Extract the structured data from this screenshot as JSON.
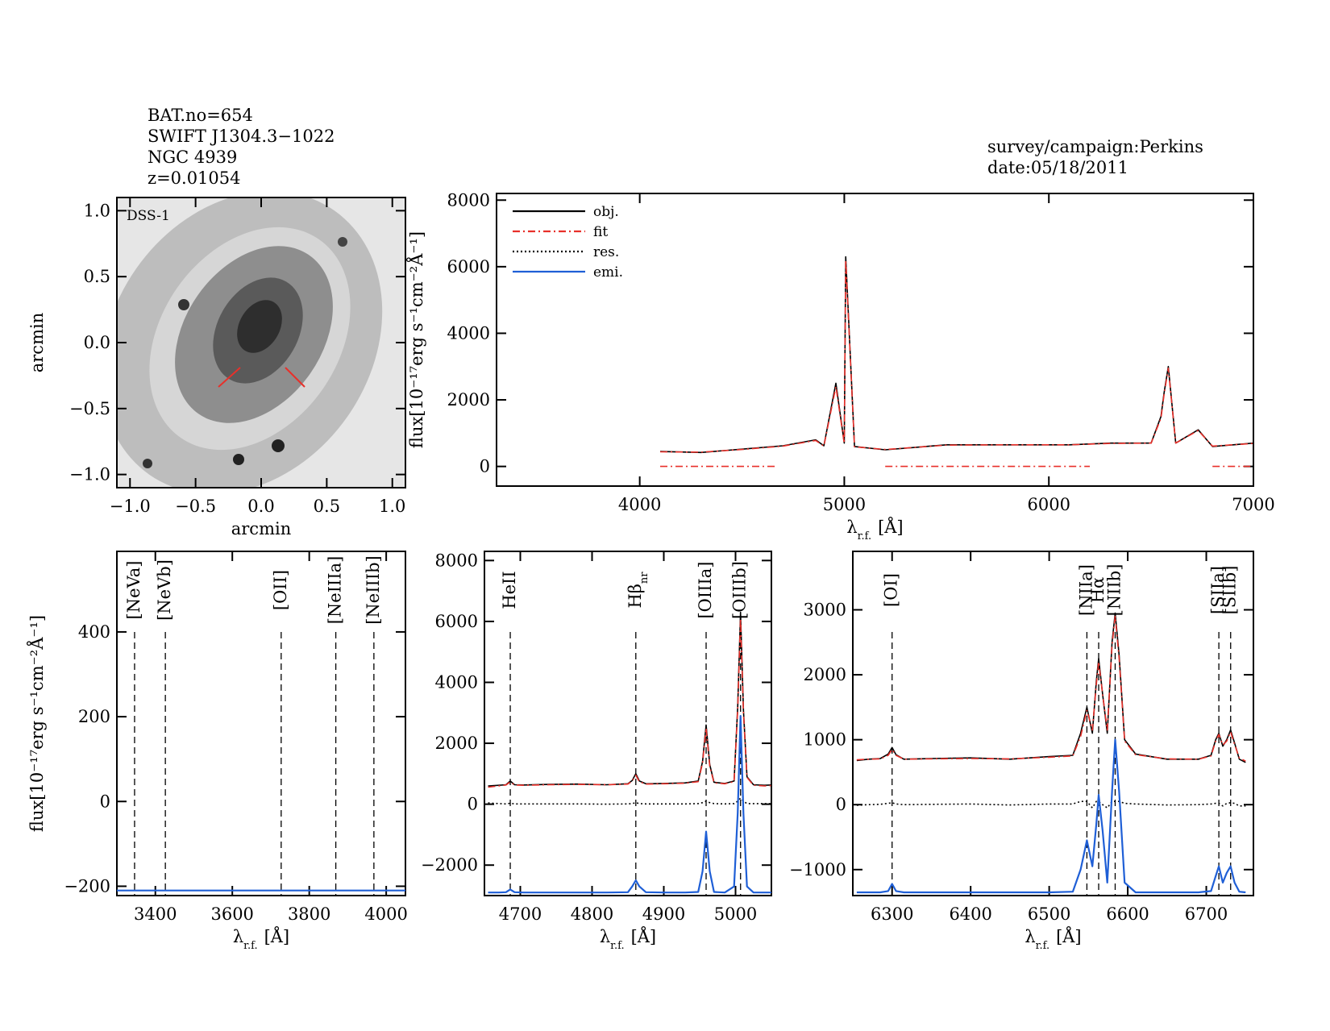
{
  "header": {
    "lines": [
      "BAT.no=654",
      "SWIFT J1304.3−1022",
      "NGC 4939",
      "z=0.01054"
    ],
    "right": [
      "survey/campaign:Perkins",
      "date:05/18/2011"
    ]
  },
  "chart_data": [
    {
      "type": "image",
      "title": "DSS-1",
      "xlabel": "arcmin",
      "ylabel": "arcmin",
      "xlim": [
        -1.1,
        1.1
      ],
      "ylim": [
        -1.1,
        1.1
      ],
      "xticks": [
        {
          "value": -1,
          "label": "−1.0"
        },
        {
          "value": -0.5,
          "label": "−0.5"
        },
        {
          "value": 0,
          "label": "0.0"
        },
        {
          "value": 0.5,
          "label": "0.5"
        },
        {
          "value": 1,
          "label": "1.0"
        }
      ],
      "yticks": [
        {
          "value": -1,
          "label": "−1.0"
        },
        {
          "value": -0.5,
          "label": "−0.5"
        },
        {
          "value": 0,
          "label": "0.0"
        },
        {
          "value": 0.5,
          "label": "0.5"
        },
        {
          "value": 1,
          "label": "1.0"
        }
      ]
    },
    {
      "type": "line",
      "ylabel": "flux[10⁻¹⁷erg s⁻¹cm⁻²Å⁻¹]",
      "xlabel": {
        "main": "λ",
        "sub": "r.f.",
        "unit": "[Å]"
      },
      "xlim": [
        3300,
        7000
      ],
      "ylim": [
        -590,
        8200
      ],
      "xticks": [
        4000,
        5000,
        6000,
        7000
      ],
      "yticks": [
        0,
        2000,
        4000,
        6000,
        8000
      ],
      "legend": [
        {
          "label": "obj.",
          "color": "#000000",
          "dash": "solid"
        },
        {
          "label": "fit",
          "color": "#e8302a",
          "dash": "dashdot"
        },
        {
          "label": "res.",
          "color": "#000000",
          "dash": "dotted"
        },
        {
          "label": "emi.",
          "color": "#1f5fd6",
          "dash": "solid"
        }
      ],
      "series": [
        {
          "color": "#000000",
          "dash": "solid",
          "x": [
            4100,
            4300,
            4500,
            4700,
            4860,
            4900,
            4959,
            5000,
            5007,
            5050,
            5200,
            5500,
            5800,
            6100,
            6300,
            6500,
            6548,
            6563,
            6584,
            6620,
            6730,
            6800,
            7000
          ],
          "values": [
            450,
            420,
            520,
            620,
            800,
            620,
            2500,
            700,
            6300,
            600,
            500,
            650,
            650,
            650,
            700,
            700,
            1500,
            2200,
            3000,
            700,
            1100,
            600,
            700
          ]
        },
        {
          "color": "#e8302a",
          "dash": "dashdot",
          "x": [
            4100,
            4300,
            4500,
            4700,
            4860,
            4900,
            4959,
            5000,
            5007,
            5050,
            5200,
            5500,
            5800,
            6100,
            6300,
            6500,
            6548,
            6563,
            6584,
            6620,
            6730,
            6800,
            7000
          ],
          "values": [
            440,
            430,
            510,
            610,
            780,
            610,
            2400,
            690,
            6200,
            590,
            510,
            640,
            650,
            650,
            690,
            700,
            1450,
            2150,
            2950,
            700,
            1080,
            610,
            690
          ]
        },
        {
          "color": "#e8302a",
          "dash": "dashdot",
          "x": [
            4100,
            4660,
            4665,
            5200,
            6200,
            6205,
            6800,
            7000
          ],
          "values": [
            0,
            0,
            null,
            0,
            0,
            null,
            0,
            0
          ]
        }
      ]
    },
    {
      "type": "line",
      "ylabel": "flux[10⁻¹⁷erg s⁻¹cm⁻²Å⁻¹]",
      "xlabel": {
        "main": "λ",
        "sub": "r.f.",
        "unit": "[Å]"
      },
      "xlim": [
        3300,
        4050
      ],
      "ylim": [
        -222,
        590
      ],
      "xticks": [
        3400,
        3600,
        3800,
        4000
      ],
      "yticks": [
        {
          "value": -200,
          "label": "−200"
        },
        0,
        200,
        400
      ],
      "line_color": "#e8302a",
      "lines": [
        {
          "x": 3346,
          "label": "[NeVa]"
        },
        {
          "x": 3426,
          "label": "[NeVb]"
        },
        {
          "x": 3727,
          "label": "[OII]"
        },
        {
          "x": 3869,
          "label": "[NeIIIa]"
        },
        {
          "x": 3968,
          "label": "[NeIIIb]"
        }
      ],
      "series": [
        {
          "color": "#1f5fd6",
          "dash": "solid",
          "x": [
            3300,
            4050
          ],
          "values": [
            -210,
            -210
          ]
        }
      ]
    },
    {
      "type": "line",
      "xlabel": {
        "main": "λ",
        "sub": "r.f.",
        "unit": "[Å]"
      },
      "xlim": [
        4650,
        5050
      ],
      "ylim": [
        -3000,
        8300
      ],
      "xticks": [
        4700,
        4800,
        4900,
        5000
      ],
      "yticks": [
        {
          "value": -2000,
          "label": "−2000"
        },
        0,
        2000,
        4000,
        6000,
        8000
      ],
      "line_color": "#000000",
      "lines": [
        {
          "x": 4686,
          "label": "HeII"
        },
        {
          "x": 4861,
          "label": {
            "main": "Hβ",
            "sub": "nr"
          }
        },
        {
          "x": 4959,
          "label": "[OIIIa]"
        },
        {
          "x": 5007,
          "label": "[OIIIb]"
        }
      ],
      "x": [
        4655,
        4670,
        4680,
        4686,
        4692,
        4705,
        4740,
        4780,
        4820,
        4850,
        4856,
        4861,
        4866,
        4875,
        4900,
        4930,
        4948,
        4954,
        4959,
        4964,
        4970,
        4985,
        4998,
        5003,
        5007,
        5011,
        5016,
        5025,
        5040,
        5050
      ],
      "series": [
        {
          "color": "#000000",
          "dash": "solid",
          "values": [
            600,
            620,
            640,
            760,
            640,
            630,
            650,
            660,
            640,
            670,
            780,
            1000,
            760,
            670,
            680,
            700,
            760,
            1400,
            2600,
            1300,
            720,
            680,
            760,
            3200,
            6300,
            3100,
            900,
            640,
            620,
            630
          ]
        },
        {
          "color": "#e8302a",
          "dash": "dashdot",
          "values": [
            560,
            600,
            630,
            730,
            630,
            620,
            640,
            650,
            640,
            660,
            760,
            950,
            740,
            660,
            670,
            690,
            740,
            1350,
            2500,
            1250,
            700,
            670,
            740,
            3100,
            6100,
            3000,
            880,
            620,
            600,
            610
          ]
        },
        {
          "color": "#000000",
          "dash": "dotted",
          "values": [
            40,
            20,
            10,
            30,
            10,
            10,
            10,
            10,
            0,
            10,
            20,
            50,
            20,
            10,
            10,
            10,
            20,
            50,
            100,
            50,
            20,
            10,
            20,
            100,
            200,
            100,
            20,
            20,
            20,
            20
          ]
        },
        {
          "color": "#1f5fd6",
          "dash": "solid",
          "values": [
            -2900,
            -2900,
            -2890,
            -2800,
            -2890,
            -2900,
            -2900,
            -2900,
            -2900,
            -2890,
            -2700,
            -2500,
            -2700,
            -2890,
            -2900,
            -2900,
            -2880,
            -2200,
            -900,
            -2200,
            -2880,
            -2900,
            -2700,
            -300,
            2900,
            -300,
            -2700,
            -2900,
            -2900,
            -2900
          ]
        }
      ]
    },
    {
      "type": "line",
      "xlabel": {
        "main": "λ",
        "sub": "r.f.",
        "unit": "[Å]"
      },
      "xlim": [
        6250,
        6760
      ],
      "ylim": [
        -1400,
        3900
      ],
      "xticks": [
        6300,
        6400,
        6500,
        6600,
        6700
      ],
      "yticks": [
        {
          "value": -1000,
          "label": "−1000"
        },
        0,
        1000,
        2000,
        3000
      ],
      "line_color": "#000000",
      "lines": [
        {
          "x": 6300,
          "label": "[OI]"
        },
        {
          "x": 6548,
          "label": "[NIIa]"
        },
        {
          "x": 6563,
          "label": "Hα"
        },
        {
          "x": 6584,
          "label": "[NIIb]"
        },
        {
          "x": 6716,
          "label": "[SIIa]"
        },
        {
          "x": 6731,
          "label": "[SIIb]"
        }
      ],
      "x": [
        6255,
        6270,
        6285,
        6295,
        6300,
        6305,
        6315,
        6350,
        6400,
        6450,
        6500,
        6530,
        6540,
        6548,
        6555,
        6560,
        6563,
        6568,
        6574,
        6580,
        6584,
        6589,
        6596,
        6610,
        6650,
        6690,
        6706,
        6712,
        6716,
        6721,
        6726,
        6731,
        6736,
        6742,
        6750
      ],
      "series": [
        {
          "color": "#000000",
          "dash": "solid",
          "values": [
            680,
            700,
            710,
            780,
            880,
            770,
            700,
            710,
            720,
            700,
            740,
            760,
            1100,
            1500,
            1100,
            1900,
            2250,
            1700,
            1100,
            2500,
            2950,
            2300,
            1000,
            780,
            700,
            700,
            760,
            1000,
            1100,
            900,
            1000,
            1150,
            950,
            700,
            650
          ]
        },
        {
          "color": "#e8302a",
          "dash": "dashdot",
          "values": [
            690,
            700,
            705,
            760,
            850,
            760,
            700,
            705,
            710,
            705,
            730,
            750,
            1050,
            1450,
            1150,
            1850,
            2200,
            1700,
            1150,
            2450,
            2900,
            2250,
            980,
            770,
            705,
            700,
            750,
            980,
            1080,
            920,
            980,
            1120,
            930,
            720,
            670
          ]
        },
        {
          "color": "#000000",
          "dash": "dotted",
          "values": [
            -10,
            0,
            5,
            20,
            30,
            10,
            0,
            5,
            10,
            -5,
            10,
            10,
            50,
            50,
            -50,
            50,
            50,
            0,
            -50,
            50,
            50,
            50,
            20,
            10,
            -5,
            0,
            10,
            20,
            20,
            -20,
            20,
            30,
            20,
            -20,
            -20
          ]
        },
        {
          "color": "#1f5fd6",
          "dash": "solid",
          "values": [
            -1350,
            -1350,
            -1350,
            -1330,
            -1220,
            -1330,
            -1350,
            -1350,
            -1350,
            -1350,
            -1350,
            -1340,
            -1000,
            -550,
            -950,
            -300,
            150,
            -400,
            -1200,
            200,
            1000,
            200,
            -1200,
            -1350,
            -1350,
            -1350,
            -1330,
            -1100,
            -950,
            -1200,
            -1050,
            -950,
            -1200,
            -1340,
            -1350
          ]
        }
      ]
    }
  ]
}
